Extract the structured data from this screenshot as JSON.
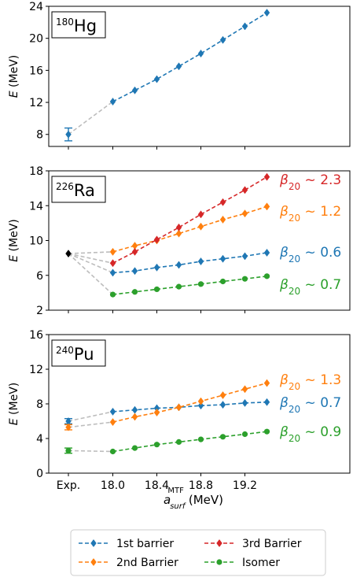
{
  "figure": {
    "shared_xlabel_main": "a",
    "shared_xlabel_sup": "MTF",
    "shared_xlabel_sub": "surf",
    "shared_xlabel_unit": "(MeV)",
    "x_tick_labels": [
      "Exp.",
      "18.0",
      "18.4",
      "18.8",
      "19.2"
    ],
    "legend": [
      {
        "label": "1st barrier",
        "color": "#1f77b4",
        "marker": "diamond"
      },
      {
        "label": "3rd Barrier",
        "color": "#d62728",
        "marker": "diamond"
      },
      {
        "label": "2nd Barrier",
        "color": "#ff7f0e",
        "marker": "diamond"
      },
      {
        "label": "Isomer",
        "color": "#2ca02c",
        "marker": "circle"
      }
    ]
  },
  "chart_data": [
    {
      "type": "line",
      "nucleus_mass": "180",
      "nucleus_symbol": "Hg",
      "ylabel": "E (MeV)",
      "ylim": [
        6.5,
        24
      ],
      "yticks": [
        8,
        12,
        16,
        20,
        24
      ],
      "x": [
        18.0,
        18.2,
        18.4,
        18.6,
        18.8,
        19.0,
        19.2,
        19.4
      ],
      "series": [
        {
          "name": "1st barrier",
          "color": "#1f77b4",
          "marker": "diamond",
          "exp": 8.0,
          "exp_err": 0.8,
          "values": [
            12.1,
            13.5,
            14.9,
            16.5,
            18.1,
            19.8,
            21.5,
            23.2
          ]
        }
      ],
      "annotations": []
    },
    {
      "type": "line",
      "nucleus_mass": "226",
      "nucleus_symbol": "Ra",
      "ylabel": "E (MeV)",
      "ylim": [
        2,
        18
      ],
      "yticks": [
        2,
        6,
        10,
        14,
        18
      ],
      "x": [
        18.0,
        18.2,
        18.4,
        18.6,
        18.8,
        19.0,
        19.2,
        19.4
      ],
      "exp_point": {
        "value": 8.5,
        "color": "#000000"
      },
      "series": [
        {
          "name": "1st barrier",
          "color": "#1f77b4",
          "marker": "diamond",
          "values": [
            6.3,
            6.5,
            6.9,
            7.2,
            7.6,
            7.9,
            8.2,
            8.6
          ]
        },
        {
          "name": "2nd Barrier",
          "color": "#ff7f0e",
          "marker": "diamond",
          "values": [
            8.7,
            9.4,
            10.0,
            10.8,
            11.6,
            12.4,
            13.1,
            13.9
          ]
        },
        {
          "name": "3rd Barrier",
          "color": "#d62728",
          "marker": "diamond",
          "values": [
            7.4,
            8.7,
            10.1,
            11.5,
            13.0,
            14.4,
            15.8,
            17.3
          ]
        },
        {
          "name": "Isomer",
          "color": "#2ca02c",
          "marker": "circle",
          "values": [
            3.8,
            4.1,
            4.4,
            4.7,
            5.0,
            5.3,
            5.6,
            5.9
          ]
        }
      ],
      "annotations": [
        {
          "beta": "β",
          "sub": "20",
          "value": " ~ 2.3",
          "color": "#d62728",
          "y": 17.0
        },
        {
          "beta": "β",
          "sub": "20",
          "value": " ~ 1.2",
          "color": "#ff7f0e",
          "y": 13.4
        },
        {
          "beta": "β",
          "sub": "20",
          "value": " ~ 0.6",
          "color": "#1f77b4",
          "y": 8.7
        },
        {
          "beta": "β",
          "sub": "20",
          "value": " ~ 0.7",
          "color": "#2ca02c",
          "y": 5.0
        }
      ]
    },
    {
      "type": "line",
      "nucleus_mass": "240",
      "nucleus_symbol": "Pu",
      "ylabel": "E (MeV)",
      "ylim": [
        0,
        16
      ],
      "yticks": [
        0,
        4,
        8,
        12,
        16
      ],
      "x": [
        18.0,
        18.2,
        18.4,
        18.6,
        18.8,
        19.0,
        19.2,
        19.4
      ],
      "series": [
        {
          "name": "1st barrier",
          "color": "#1f77b4",
          "marker": "diamond",
          "exp": 6.0,
          "exp_err": 0.3,
          "values": [
            7.1,
            7.3,
            7.5,
            7.6,
            7.8,
            7.9,
            8.1,
            8.2
          ]
        },
        {
          "name": "2nd Barrier",
          "color": "#ff7f0e",
          "marker": "diamond",
          "exp": 5.3,
          "exp_err": 0.3,
          "values": [
            5.9,
            6.5,
            7.0,
            7.6,
            8.3,
            9.0,
            9.7,
            10.4
          ]
        },
        {
          "name": "Isomer",
          "color": "#2ca02c",
          "marker": "circle",
          "exp": 2.6,
          "exp_err": 0.3,
          "values": [
            2.5,
            2.9,
            3.3,
            3.6,
            3.9,
            4.2,
            4.5,
            4.8
          ]
        }
      ],
      "annotations": [
        {
          "beta": "β",
          "sub": "20",
          "value": " ~ 1.3",
          "color": "#ff7f0e",
          "y": 10.8
        },
        {
          "beta": "β",
          "sub": "20",
          "value": " ~ 0.7",
          "color": "#1f77b4",
          "y": 8.2
        },
        {
          "beta": "β",
          "sub": "20",
          "value": " ~ 0.9",
          "color": "#2ca02c",
          "y": 4.8
        }
      ]
    }
  ]
}
